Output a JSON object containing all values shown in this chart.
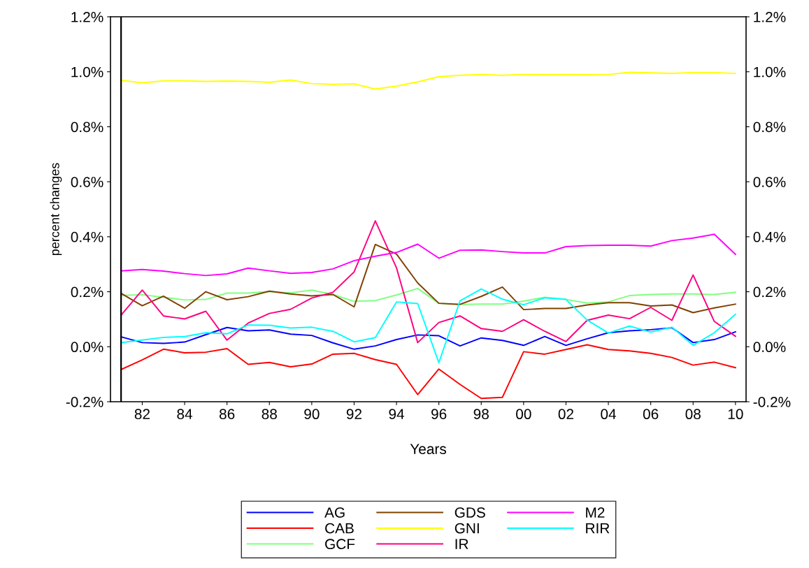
{
  "chart_data": {
    "type": "line",
    "xlabel": "Years",
    "ylabel": "percent changes",
    "x": [
      1981,
      1982,
      1983,
      1984,
      1985,
      1986,
      1987,
      1988,
      1989,
      1990,
      1991,
      1992,
      1993,
      1994,
      1995,
      1996,
      1997,
      1998,
      1999,
      2000,
      2001,
      2002,
      2003,
      2004,
      2005,
      2006,
      2007,
      2008,
      2009,
      2010
    ],
    "xlim": [
      1980.5,
      2010.5
    ],
    "xticks": [
      {
        "value": 1982,
        "label": "82"
      },
      {
        "value": 1984,
        "label": "84"
      },
      {
        "value": 1986,
        "label": "86"
      },
      {
        "value": 1988,
        "label": "88"
      },
      {
        "value": 1990,
        "label": "90"
      },
      {
        "value": 1992,
        "label": "92"
      },
      {
        "value": 1994,
        "label": "94"
      },
      {
        "value": 1996,
        "label": "96"
      },
      {
        "value": 1998,
        "label": "98"
      },
      {
        "value": 2000,
        "label": "00"
      },
      {
        "value": 2002,
        "label": "02"
      },
      {
        "value": 2004,
        "label": "04"
      },
      {
        "value": 2006,
        "label": "06"
      },
      {
        "value": 2008,
        "label": "08"
      },
      {
        "value": 2010,
        "label": "10"
      }
    ],
    "ylim": [
      -0.2,
      1.2
    ],
    "yticks": [
      {
        "value": -0.2,
        "label": "-0.2%"
      },
      {
        "value": 0.0,
        "label": "0.0%"
      },
      {
        "value": 0.2,
        "label": "0.2%"
      },
      {
        "value": 0.4,
        "label": "0.4%"
      },
      {
        "value": 0.6,
        "label": "0.6%"
      },
      {
        "value": 0.8,
        "label": "0.8%"
      },
      {
        "value": 1.0,
        "label": "1.0%"
      },
      {
        "value": 1.2,
        "label": "1.2%"
      }
    ],
    "y2lim": [
      -0.2,
      1.2
    ],
    "y2ticks": [
      {
        "value": -0.2,
        "label": "-0.2%"
      },
      {
        "value": 0.0,
        "label": "0.0%"
      },
      {
        "value": 0.2,
        "label": "0.2%"
      },
      {
        "value": 0.4,
        "label": "0.4%"
      },
      {
        "value": 0.6,
        "label": "0.6%"
      },
      {
        "value": 0.8,
        "label": "0.8%"
      },
      {
        "value": 1.0,
        "label": "1.0%"
      },
      {
        "value": 1.2,
        "label": "1.2%"
      }
    ],
    "grid": false,
    "legend": "bottom",
    "marker": "none",
    "line_style": "solid",
    "ref_lines": [
      {
        "axis": "x",
        "value": 1981,
        "color": "#000000"
      }
    ],
    "series": [
      {
        "name": "AG",
        "color": "#0000ff",
        "values": [
          0.036,
          0.015,
          0.012,
          0.017,
          0.044,
          0.07,
          0.058,
          0.061,
          0.046,
          0.041,
          0.014,
          -0.009,
          0.003,
          0.026,
          0.043,
          0.04,
          0.003,
          0.032,
          0.023,
          0.005,
          0.037,
          0.005,
          0.029,
          0.051,
          0.058,
          0.062,
          0.069,
          0.015,
          0.026,
          0.054
        ]
      },
      {
        "name": "CAB",
        "color": "#ff0000",
        "values": [
          -0.083,
          -0.048,
          -0.009,
          -0.022,
          -0.02,
          -0.007,
          -0.064,
          -0.057,
          -0.073,
          -0.063,
          -0.027,
          -0.024,
          -0.047,
          -0.064,
          -0.174,
          -0.081,
          -0.137,
          -0.188,
          -0.184,
          -0.018,
          -0.027,
          -0.01,
          0.007,
          -0.01,
          -0.015,
          -0.024,
          -0.039,
          -0.067,
          -0.056,
          -0.076
        ]
      },
      {
        "name": "GCF",
        "color": "#80ff80",
        "values": [
          0.187,
          0.189,
          0.18,
          0.17,
          0.172,
          0.195,
          0.195,
          0.201,
          0.196,
          0.206,
          0.19,
          0.165,
          0.168,
          0.188,
          0.212,
          0.158,
          0.154,
          0.155,
          0.155,
          0.166,
          0.18,
          0.172,
          0.159,
          0.163,
          0.186,
          0.19,
          0.192,
          0.192,
          0.19,
          0.198
        ]
      },
      {
        "name": "GDS",
        "color": "#804000",
        "values": [
          0.194,
          0.149,
          0.184,
          0.14,
          0.2,
          0.171,
          0.182,
          0.202,
          0.192,
          0.185,
          0.19,
          0.145,
          0.372,
          0.337,
          0.232,
          0.158,
          0.154,
          0.183,
          0.217,
          0.135,
          0.139,
          0.139,
          0.152,
          0.16,
          0.16,
          0.148,
          0.152,
          0.124,
          0.141,
          0.155
        ]
      },
      {
        "name": "GNI",
        "color": "#ffff00",
        "values": [
          0.969,
          0.96,
          0.967,
          0.967,
          0.965,
          0.966,
          0.965,
          0.962,
          0.97,
          0.957,
          0.954,
          0.956,
          0.937,
          0.948,
          0.963,
          0.982,
          0.987,
          0.99,
          0.987,
          0.99,
          0.989,
          0.99,
          0.989,
          0.99,
          0.998,
          0.996,
          0.994,
          0.997,
          0.997,
          0.994
        ]
      },
      {
        "name": "IR",
        "color": "#ff0080",
        "values": [
          0.115,
          0.206,
          0.112,
          0.101,
          0.129,
          0.024,
          0.086,
          0.121,
          0.136,
          0.177,
          0.198,
          0.272,
          0.458,
          0.287,
          0.015,
          0.088,
          0.112,
          0.066,
          0.056,
          0.098,
          0.056,
          0.019,
          0.096,
          0.115,
          0.102,
          0.143,
          0.096,
          0.261,
          0.092,
          0.038
        ]
      },
      {
        "name": "M2",
        "color": "#ff00ff",
        "values": [
          0.276,
          0.281,
          0.275,
          0.266,
          0.259,
          0.265,
          0.286,
          0.276,
          0.267,
          0.27,
          0.283,
          0.313,
          0.329,
          0.343,
          0.373,
          0.322,
          0.351,
          0.352,
          0.346,
          0.341,
          0.341,
          0.364,
          0.368,
          0.369,
          0.369,
          0.366,
          0.386,
          0.395,
          0.409,
          0.336
        ]
      },
      {
        "name": "RIR",
        "color": "#00ffff",
        "values": [
          0.015,
          0.024,
          0.034,
          0.037,
          0.051,
          0.047,
          0.079,
          0.078,
          0.068,
          0.071,
          0.056,
          0.018,
          0.033,
          0.163,
          0.157,
          -0.058,
          0.167,
          0.21,
          0.173,
          0.153,
          0.178,
          0.172,
          0.097,
          0.05,
          0.075,
          0.053,
          0.071,
          0.005,
          0.051,
          0.118
        ]
      }
    ]
  }
}
